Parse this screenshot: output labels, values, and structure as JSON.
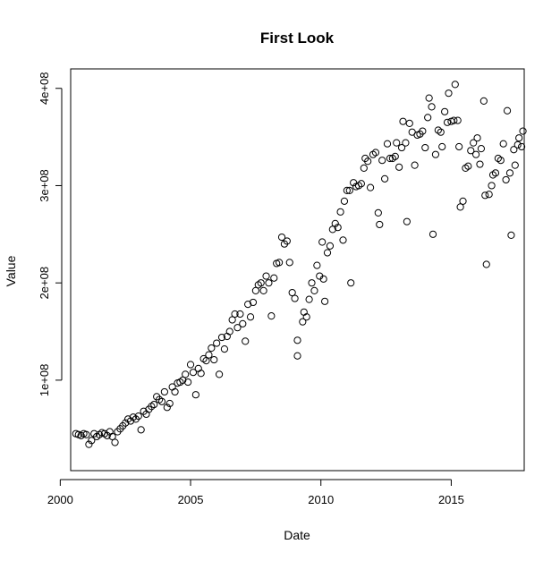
{
  "chart_data": {
    "type": "scatter",
    "title": "First Look",
    "xlabel": "Date",
    "ylabel": "Value",
    "xlim": [
      2000.4,
      2017.8
    ],
    "ylim": [
      7000000,
      420000000
    ],
    "x_ticks": [
      2000,
      2005,
      2010,
      2015
    ],
    "x_tick_labels": [
      "2000",
      "2005",
      "2010",
      "2015"
    ],
    "y_ticks": [
      100000000,
      200000000,
      300000000,
      400000000
    ],
    "y_tick_labels": [
      "1e+08",
      "2e+08",
      "3e+08",
      "4e+08"
    ],
    "grid": false,
    "legend": "none",
    "points": [
      [
        2000.6,
        45
      ],
      [
        2000.7,
        44
      ],
      [
        2000.8,
        43
      ],
      [
        2000.9,
        45
      ],
      [
        2001.0,
        44
      ],
      [
        2001.1,
        34
      ],
      [
        2001.2,
        38
      ],
      [
        2001.3,
        45
      ],
      [
        2001.4,
        42
      ],
      [
        2001.5,
        44
      ],
      [
        2001.6,
        46
      ],
      [
        2001.7,
        45
      ],
      [
        2001.8,
        43
      ],
      [
        2001.9,
        47
      ],
      [
        2002.0,
        42
      ],
      [
        2002.1,
        36
      ],
      [
        2002.2,
        47
      ],
      [
        2002.3,
        50
      ],
      [
        2002.4,
        53
      ],
      [
        2002.5,
        56
      ],
      [
        2002.6,
        60
      ],
      [
        2002.7,
        58
      ],
      [
        2002.8,
        62
      ],
      [
        2002.9,
        60
      ],
      [
        2003.0,
        63
      ],
      [
        2003.1,
        49
      ],
      [
        2003.2,
        68
      ],
      [
        2003.3,
        65
      ],
      [
        2003.4,
        70
      ],
      [
        2003.5,
        73
      ],
      [
        2003.6,
        75
      ],
      [
        2003.7,
        83
      ],
      [
        2003.8,
        80
      ],
      [
        2003.9,
        78
      ],
      [
        2004.0,
        88
      ],
      [
        2004.1,
        72
      ],
      [
        2004.2,
        76
      ],
      [
        2004.3,
        93
      ],
      [
        2004.4,
        88
      ],
      [
        2004.5,
        97
      ],
      [
        2004.6,
        98
      ],
      [
        2004.7,
        100
      ],
      [
        2004.8,
        106
      ],
      [
        2004.9,
        98
      ],
      [
        2005.0,
        116
      ],
      [
        2005.1,
        108
      ],
      [
        2005.2,
        85
      ],
      [
        2005.3,
        112
      ],
      [
        2005.4,
        107
      ],
      [
        2005.5,
        122
      ],
      [
        2005.6,
        120
      ],
      [
        2005.7,
        126
      ],
      [
        2005.8,
        133
      ],
      [
        2005.9,
        121
      ],
      [
        2006.0,
        138
      ],
      [
        2006.1,
        106
      ],
      [
        2006.2,
        144
      ],
      [
        2006.3,
        132
      ],
      [
        2006.4,
        145
      ],
      [
        2006.5,
        150
      ],
      [
        2006.6,
        162
      ],
      [
        2006.7,
        168
      ],
      [
        2006.8,
        154
      ],
      [
        2006.9,
        168
      ],
      [
        2007.0,
        158
      ],
      [
        2007.1,
        140
      ],
      [
        2007.2,
        178
      ],
      [
        2007.3,
        165
      ],
      [
        2007.4,
        180
      ],
      [
        2007.5,
        192
      ],
      [
        2007.6,
        198
      ],
      [
        2007.7,
        200
      ],
      [
        2007.8,
        192
      ],
      [
        2007.9,
        207
      ],
      [
        2008.0,
        200
      ],
      [
        2008.1,
        166
      ],
      [
        2008.2,
        205
      ],
      [
        2008.3,
        220
      ],
      [
        2008.4,
        221
      ],
      [
        2008.5,
        247
      ],
      [
        2008.6,
        240
      ],
      [
        2008.7,
        243
      ],
      [
        2008.8,
        221
      ],
      [
        2008.9,
        190
      ],
      [
        2009.0,
        184
      ],
      [
        2009.1,
        141
      ],
      [
        2009.1,
        125
      ],
      [
        2009.3,
        160
      ],
      [
        2009.35,
        170
      ],
      [
        2009.45,
        165
      ],
      [
        2009.55,
        183
      ],
      [
        2009.65,
        200
      ],
      [
        2009.75,
        192
      ],
      [
        2009.85,
        218
      ],
      [
        2009.95,
        207
      ],
      [
        2010.05,
        242
      ],
      [
        2010.1,
        204
      ],
      [
        2010.15,
        181
      ],
      [
        2010.25,
        231
      ],
      [
        2010.35,
        238
      ],
      [
        2010.45,
        255
      ],
      [
        2010.55,
        261
      ],
      [
        2010.65,
        257
      ],
      [
        2010.75,
        273
      ],
      [
        2010.85,
        244
      ],
      [
        2010.9,
        284
      ],
      [
        2011.0,
        295
      ],
      [
        2011.1,
        295
      ],
      [
        2011.15,
        200
      ],
      [
        2011.25,
        303
      ],
      [
        2011.35,
        299
      ],
      [
        2011.45,
        300
      ],
      [
        2011.55,
        302
      ],
      [
        2011.65,
        318
      ],
      [
        2011.7,
        328
      ],
      [
        2011.8,
        325
      ],
      [
        2011.9,
        298
      ],
      [
        2012.0,
        332
      ],
      [
        2012.1,
        334
      ],
      [
        2012.2,
        272
      ],
      [
        2012.25,
        260
      ],
      [
        2012.35,
        326
      ],
      [
        2012.45,
        307
      ],
      [
        2012.55,
        343
      ],
      [
        2012.65,
        328
      ],
      [
        2012.75,
        328
      ],
      [
        2012.85,
        330
      ],
      [
        2012.9,
        344
      ],
      [
        2013.0,
        319
      ],
      [
        2013.1,
        339
      ],
      [
        2013.15,
        366
      ],
      [
        2013.25,
        344
      ],
      [
        2013.3,
        263
      ],
      [
        2013.4,
        364
      ],
      [
        2013.5,
        355
      ],
      [
        2013.6,
        321
      ],
      [
        2013.7,
        352
      ],
      [
        2013.8,
        353
      ],
      [
        2013.9,
        356
      ],
      [
        2014.0,
        339
      ],
      [
        2014.1,
        370
      ],
      [
        2014.15,
        390
      ],
      [
        2014.25,
        381
      ],
      [
        2014.3,
        250
      ],
      [
        2014.4,
        332
      ],
      [
        2014.5,
        357
      ],
      [
        2014.6,
        355
      ],
      [
        2014.65,
        340
      ],
      [
        2014.75,
        376
      ],
      [
        2014.85,
        365
      ],
      [
        2014.9,
        395
      ],
      [
        2015.0,
        366
      ],
      [
        2015.1,
        367
      ],
      [
        2015.15,
        404
      ],
      [
        2015.25,
        367
      ],
      [
        2015.3,
        340
      ],
      [
        2015.35,
        278
      ],
      [
        2015.45,
        284
      ],
      [
        2015.55,
        318
      ],
      [
        2015.65,
        320
      ],
      [
        2015.75,
        336
      ],
      [
        2015.85,
        344
      ],
      [
        2015.95,
        332
      ],
      [
        2016.0,
        349
      ],
      [
        2016.1,
        322
      ],
      [
        2016.15,
        338
      ],
      [
        2016.25,
        387
      ],
      [
        2016.3,
        290
      ],
      [
        2016.35,
        219
      ],
      [
        2016.45,
        291
      ],
      [
        2016.55,
        300
      ],
      [
        2016.6,
        311
      ],
      [
        2016.7,
        313
      ],
      [
        2016.8,
        328
      ],
      [
        2016.9,
        326
      ],
      [
        2017.0,
        343
      ],
      [
        2017.1,
        306
      ],
      [
        2017.15,
        377
      ],
      [
        2017.25,
        313
      ],
      [
        2017.3,
        249
      ],
      [
        2017.4,
        337
      ],
      [
        2017.45,
        321
      ],
      [
        2017.55,
        342
      ],
      [
        2017.6,
        349
      ],
      [
        2017.7,
        340
      ],
      [
        2017.75,
        356
      ]
    ],
    "points_unit_multiplier": 1000000
  }
}
